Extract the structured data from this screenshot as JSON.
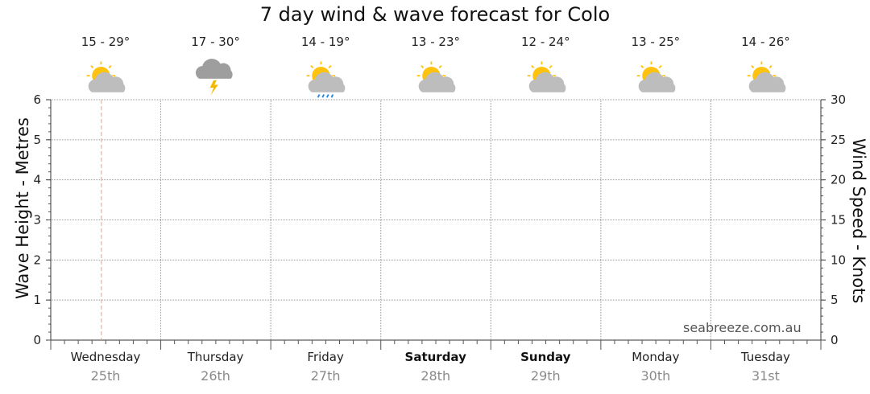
{
  "chart_data": {
    "type": "line",
    "title": "7 day wind & wave forecast for Colo",
    "ylabel_left": "Wave Height - Metres",
    "ylabel_right": "Wind Speed - Knots",
    "ylim_left": [
      0,
      6
    ],
    "ylim_right": [
      0,
      30
    ],
    "yticks_left": [
      "0",
      "1",
      "2",
      "3",
      "4",
      "5",
      "6"
    ],
    "yticks_right": [
      "0",
      "5",
      "10",
      "15",
      "20",
      "25",
      "30"
    ],
    "grid": true,
    "series": [],
    "days": [
      {
        "day": "Wednesday",
        "date": "25th",
        "temp": "15 - 29°",
        "icon": "sun-cloud-icon",
        "bold": false
      },
      {
        "day": "Thursday",
        "date": "26th",
        "temp": "17 - 30°",
        "icon": "storm-cloud-icon",
        "bold": false
      },
      {
        "day": "Friday",
        "date": "27th",
        "temp": "14 - 19°",
        "icon": "sun-cloud-rain-icon",
        "bold": false
      },
      {
        "day": "Saturday",
        "date": "28th",
        "temp": "13 - 23°",
        "icon": "sun-cloud-icon",
        "bold": true
      },
      {
        "day": "Sunday",
        "date": "29th",
        "temp": "12 - 24°",
        "icon": "sun-cloud-icon",
        "bold": true
      },
      {
        "day": "Monday",
        "date": "30th",
        "temp": "13 - 25°",
        "icon": "sun-cloud-icon",
        "bold": false
      },
      {
        "day": "Tuesday",
        "date": "31st",
        "temp": "14 - 26°",
        "icon": "sun-cloud-icon",
        "bold": false
      }
    ]
  },
  "watermark": "seabreeze.com.au",
  "colors": {
    "sun": "#FFC20E",
    "cloud": "#BDBDBD",
    "storm_cloud": "#9E9E9E",
    "lightning": "#F5B800",
    "rain": "#1E88E5",
    "now_marker": "#E8A08A",
    "grid": "#9a9a9a"
  }
}
